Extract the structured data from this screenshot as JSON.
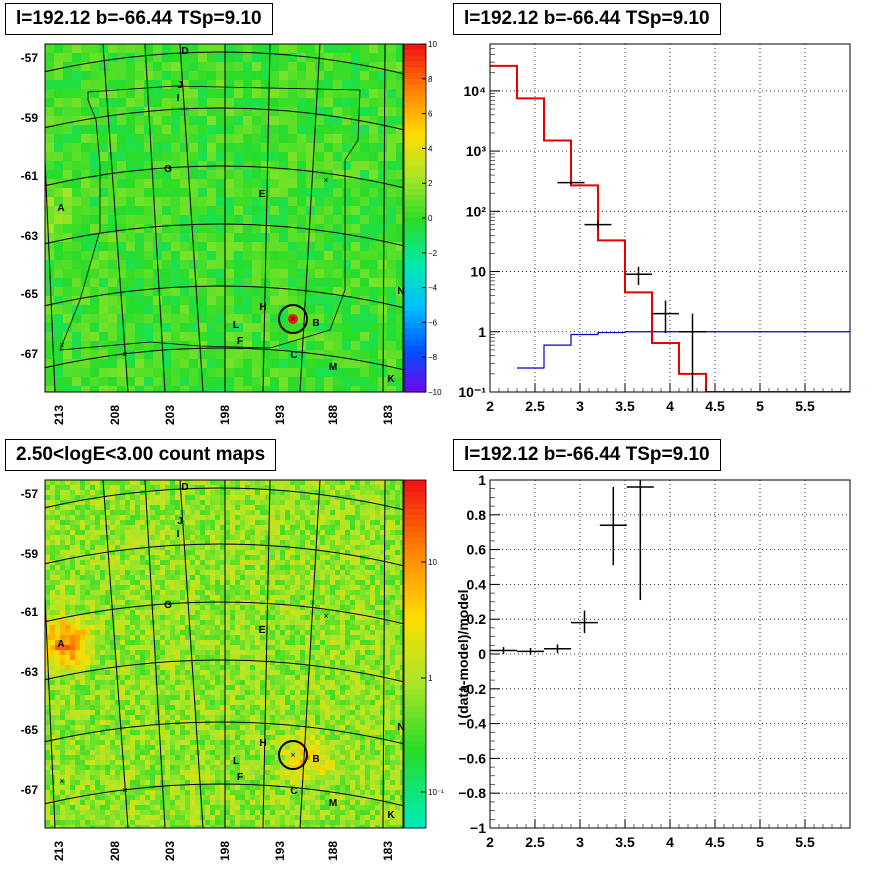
{
  "panels": {
    "top_left_title": "l=192.12 b=-66.44 TSp=9.10",
    "top_right_title": "l=192.12 b=-66.44 TSp=9.10",
    "bottom_left_title": "2.50<logE<3.00 count maps",
    "bottom_right_title": "l=192.12 b=-66.44 TSp=9.10"
  },
  "sky_map": {
    "lat_ticks": [
      "-57",
      "-59",
      "-61",
      "-63",
      "-65",
      "-67"
    ],
    "lon_ticks": [
      "213",
      "208",
      "203",
      "198",
      "193",
      "188",
      "183"
    ],
    "source_labels": [
      "D",
      "J",
      "I",
      "G",
      "E",
      "A",
      "H",
      "B",
      "L",
      "F",
      "C",
      "M",
      "K",
      "N"
    ]
  },
  "ts_colorbar": {
    "ticks": [
      "10",
      "8",
      "6",
      "4",
      "2",
      "0",
      "−2",
      "−4",
      "−6",
      "−8",
      "−10"
    ]
  },
  "count_colorbar": {
    "ticks": [
      "10",
      "1",
      "10⁻¹"
    ]
  },
  "chart_data": [
    {
      "type": "histogram-step",
      "log_y": true,
      "xlim": [
        2.0,
        6.0
      ],
      "ylim": [
        0.1,
        60000
      ],
      "x_ticks": [
        "2",
        "2.5",
        "3",
        "3.5",
        "4",
        "4.5",
        "5",
        "5.5"
      ],
      "y_ticks": [
        "10⁻¹",
        "1",
        "10",
        "10²",
        "10³",
        "10⁴"
      ],
      "grid": true,
      "data_points": [
        {
          "x": 2.9,
          "xerr": 0.15,
          "y": 300,
          "ylow": 285,
          "yhigh": 315
        },
        {
          "x": 3.2,
          "xerr": 0.15,
          "y": 60,
          "ylow": 52,
          "yhigh": 70
        },
        {
          "x": 3.65,
          "xerr": 0.15,
          "y": 9,
          "ylow": 6,
          "yhigh": 12
        },
        {
          "x": 3.95,
          "xerr": 0.15,
          "y": 2,
          "ylow": 0.95,
          "yhigh": 3.3
        },
        {
          "x": 4.25,
          "xerr": 0.15,
          "y": 1,
          "ylow": 0.1,
          "yhigh": 2.0
        }
      ],
      "model_total": {
        "color": "#e60000",
        "edges": [
          2.0,
          2.3,
          2.6,
          2.9,
          3.2,
          3.5,
          3.8,
          4.1,
          4.4,
          6.0
        ],
        "values": [
          26000,
          7500,
          1500,
          270,
          33,
          4.5,
          0.65,
          0.2,
          0.1
        ]
      },
      "model_source": {
        "color": "#0000cc",
        "edges": [
          2.3,
          2.6,
          2.9,
          3.2,
          3.5,
          6.0
        ],
        "values": [
          0.25,
          0.6,
          0.9,
          0.97,
          1.0
        ]
      }
    },
    {
      "type": "scatter-errorbar",
      "ylabel": "(data-model)/model",
      "xlim": [
        2.0,
        6.0
      ],
      "ylim": [
        -1.0,
        1.0
      ],
      "x_ticks": [
        "2",
        "2.5",
        "3",
        "3.5",
        "4",
        "4.5",
        "5",
        "5.5"
      ],
      "y_ticks": [
        "−1",
        "−0.8",
        "−0.6",
        "−0.4",
        "−0.2",
        "0",
        "0.2",
        "0.4",
        "0.6",
        "0.8",
        "1"
      ],
      "grid": true,
      "points": [
        {
          "x": 2.15,
          "xerr": 0.15,
          "y": 0.02,
          "ylow": 0.0,
          "yhigh": 0.04
        },
        {
          "x": 2.45,
          "xerr": 0.15,
          "y": 0.015,
          "ylow": -0.005,
          "yhigh": 0.035
        },
        {
          "x": 2.75,
          "xerr": 0.15,
          "y": 0.03,
          "ylow": 0.005,
          "yhigh": 0.055
        },
        {
          "x": 3.05,
          "xerr": 0.15,
          "y": 0.18,
          "ylow": 0.12,
          "yhigh": 0.25
        },
        {
          "x": 3.37,
          "xerr": 0.15,
          "y": 0.74,
          "ylow": 0.51,
          "yhigh": 0.96
        },
        {
          "x": 3.67,
          "xerr": 0.15,
          "y": 0.96,
          "ylow": 0.31,
          "yhigh": 1.0
        }
      ]
    }
  ]
}
